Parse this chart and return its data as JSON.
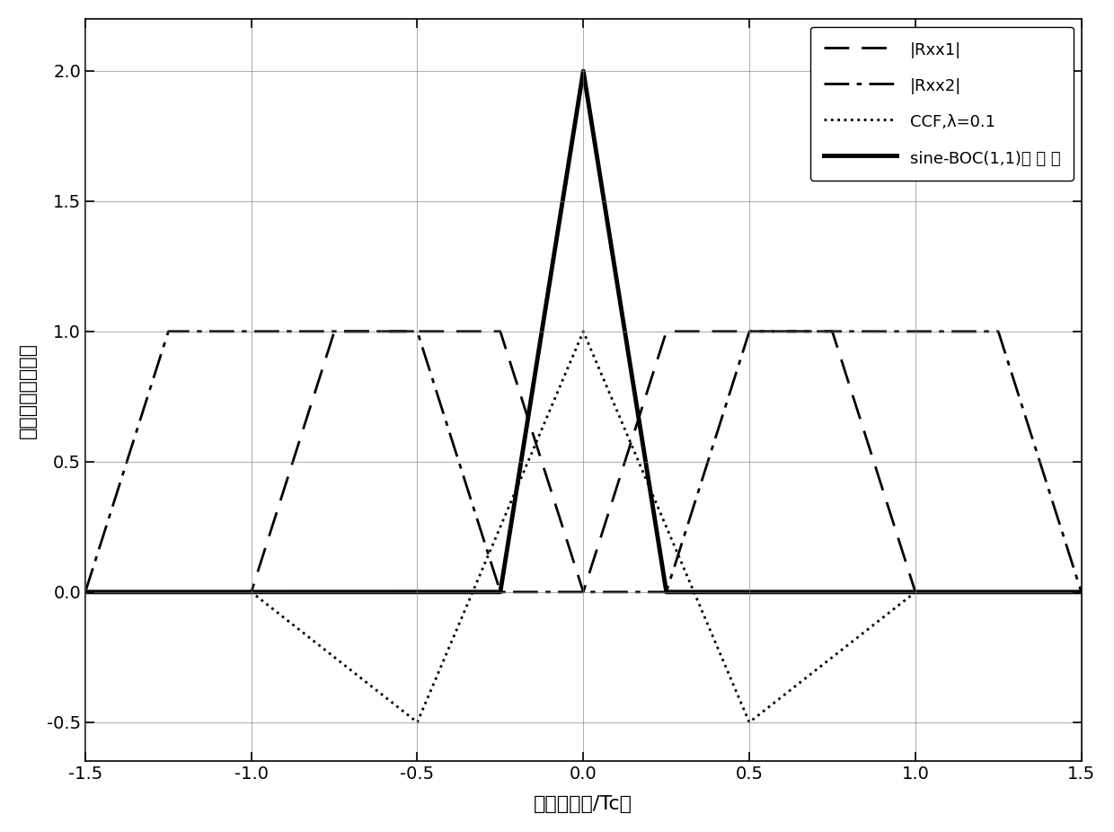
{
  "xlim": [
    -1.5,
    1.5
  ],
  "ylim": [
    -0.65,
    2.2
  ],
  "xticks": [
    -1.5,
    -1.0,
    -0.5,
    0.0,
    0.5,
    1.0,
    1.5
  ],
  "yticks": [
    -0.5,
    0.0,
    0.5,
    1.0,
    1.5,
    2.0
  ],
  "xlabel": "码片延迟（/Tc）",
  "ylabel": "归一化相关函数値",
  "legend_Rxx1": "|Rxx1|",
  "legend_Rxx2": "|Rxx2|",
  "legend_CCF": "CCF,λ=0.1",
  "legend_BOC": "sine-BOC(1,1)自 相 关",
  "color": "black",
  "lw_thin": 2.0,
  "lw_thick": 3.5,
  "lw_dotted": 2.0
}
